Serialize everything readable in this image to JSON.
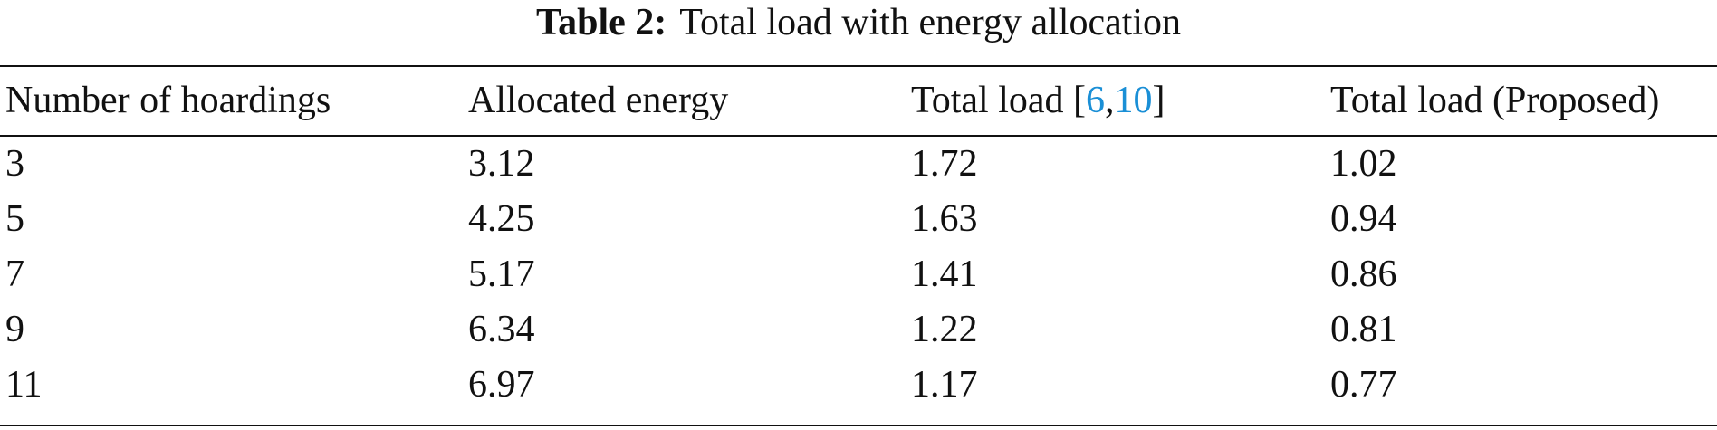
{
  "caption": {
    "label": "Table 2:",
    "text": "Total load with energy allocation"
  },
  "table": {
    "headers": {
      "col1": "Number of hoardings",
      "col2": "Allocated energy",
      "col3_prefix": "Total load [",
      "col3_ref1": "6",
      "col3_sep": ",",
      "col3_ref2": "10",
      "col3_suffix": "]",
      "col4": "Total load (Proposed)"
    },
    "rows": [
      {
        "hoardings": "3",
        "energy": "3.12",
        "load_ref": "1.72",
        "load_proposed": "1.02"
      },
      {
        "hoardings": "5",
        "energy": "4.25",
        "load_ref": "1.63",
        "load_proposed": "0.94"
      },
      {
        "hoardings": "7",
        "energy": "5.17",
        "load_ref": "1.41",
        "load_proposed": "0.86"
      },
      {
        "hoardings": "9",
        "energy": "6.34",
        "load_ref": "1.22",
        "load_proposed": "0.81"
      },
      {
        "hoardings": "11",
        "energy": "6.97",
        "load_ref": "1.17",
        "load_proposed": "0.77"
      }
    ]
  },
  "colors": {
    "text": "#111111",
    "reference_link": "#1a8fd6"
  }
}
